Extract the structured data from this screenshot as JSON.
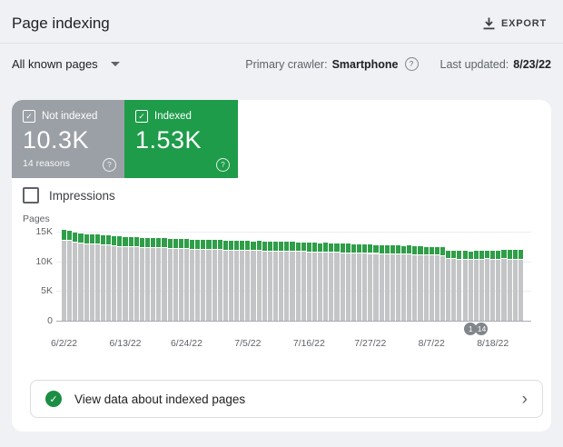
{
  "header": {
    "title": "Page indexing",
    "export_label": "EXPORT"
  },
  "filter_bar": {
    "scope_label": "All known pages",
    "primary_crawler_label": "Primary crawler:",
    "primary_crawler_value": "Smartphone",
    "last_updated_label": "Last updated:",
    "last_updated_value": "8/23/22"
  },
  "cards": {
    "not_indexed": {
      "label": "Not indexed",
      "value": "10.3K",
      "sub": "14 reasons",
      "color": "#9ba0a6"
    },
    "indexed": {
      "label": "Indexed",
      "value": "1.53K",
      "color": "#1e9c4a"
    }
  },
  "impressions": {
    "label": "Impressions",
    "checked": false
  },
  "chart_data": {
    "type": "bar",
    "stacked": true,
    "ylabel": "Pages",
    "ylim": [
      0,
      15000
    ],
    "grid": true,
    "y_ticks": [
      {
        "label": "0",
        "value": 0
      },
      {
        "label": "5K",
        "value": 5000
      },
      {
        "label": "10K",
        "value": 10000
      },
      {
        "label": "15K",
        "value": 15000
      }
    ],
    "x_tick_labels": [
      "6/2/22",
      "6/13/22",
      "6/24/22",
      "7/5/22",
      "7/16/22",
      "7/27/22",
      "8/7/22",
      "8/18/22"
    ],
    "x": [
      "6/2/22",
      "6/3/22",
      "6/4/22",
      "6/5/22",
      "6/6/22",
      "6/7/22",
      "6/8/22",
      "6/9/22",
      "6/10/22",
      "6/11/22",
      "6/12/22",
      "6/13/22",
      "6/14/22",
      "6/15/22",
      "6/16/22",
      "6/17/22",
      "6/18/22",
      "6/19/22",
      "6/20/22",
      "6/21/22",
      "6/22/22",
      "6/23/22",
      "6/24/22",
      "6/25/22",
      "6/26/22",
      "6/27/22",
      "6/28/22",
      "6/29/22",
      "6/30/22",
      "7/1/22",
      "7/2/22",
      "7/3/22",
      "7/4/22",
      "7/5/22",
      "7/6/22",
      "7/7/22",
      "7/8/22",
      "7/9/22",
      "7/10/22",
      "7/11/22",
      "7/12/22",
      "7/13/22",
      "7/14/22",
      "7/15/22",
      "7/16/22",
      "7/17/22",
      "7/18/22",
      "7/19/22",
      "7/20/22",
      "7/21/22",
      "7/22/22",
      "7/23/22",
      "7/24/22",
      "7/25/22",
      "7/26/22",
      "7/27/22",
      "7/28/22",
      "7/29/22",
      "7/30/22",
      "7/31/22",
      "8/1/22",
      "8/2/22",
      "8/3/22",
      "8/4/22",
      "8/5/22",
      "8/6/22",
      "8/7/22",
      "8/8/22",
      "8/9/22",
      "8/10/22",
      "8/11/22",
      "8/12/22",
      "8/13/22",
      "8/14/22",
      "8/15/22",
      "8/16/22",
      "8/17/22",
      "8/18/22",
      "8/19/22",
      "8/20/22",
      "8/21/22",
      "8/22/22",
      "8/23/22"
    ],
    "series": [
      {
        "name": "Not indexed",
        "color": "#c4c5c7",
        "values": [
          13500,
          13400,
          13100,
          13050,
          12850,
          12800,
          12800,
          12750,
          12700,
          12500,
          12450,
          12400,
          12400,
          12350,
          12300,
          12300,
          12250,
          12200,
          12200,
          12150,
          12100,
          12100,
          12050,
          12000,
          12000,
          11950,
          11950,
          11900,
          11900,
          11850,
          11850,
          11800,
          11800,
          11800,
          11750,
          11750,
          11700,
          11700,
          11700,
          11650,
          11650,
          11600,
          11600,
          11600,
          11550,
          11550,
          11500,
          11500,
          11450,
          11450,
          11400,
          11400,
          11350,
          11300,
          11300,
          11250,
          11250,
          11200,
          11200,
          11150,
          11150,
          11100,
          11100,
          11050,
          11000,
          11000,
          10950,
          10950,
          10900,
          10400,
          10350,
          10300,
          10300,
          10250,
          10300,
          10300,
          10350,
          10300,
          10300,
          10350,
          10300,
          10300,
          10300
        ]
      },
      {
        "name": "Indexed",
        "color": "#2f9e48",
        "values": [
          1600,
          1600,
          1550,
          1550,
          1600,
          1600,
          1600,
          1550,
          1550,
          1600,
          1600,
          1550,
          1550,
          1600,
          1550,
          1550,
          1600,
          1550,
          1550,
          1500,
          1550,
          1500,
          1550,
          1500,
          1500,
          1550,
          1500,
          1500,
          1550,
          1500,
          1500,
          1450,
          1500,
          1500,
          1450,
          1500,
          1450,
          1450,
          1500,
          1450,
          1450,
          1500,
          1450,
          1450,
          1400,
          1450,
          1400,
          1450,
          1400,
          1400,
          1450,
          1400,
          1400,
          1450,
          1400,
          1400,
          1350,
          1400,
          1350,
          1400,
          1350,
          1350,
          1400,
          1350,
          1350,
          1300,
          1350,
          1300,
          1350,
          1300,
          1300,
          1350,
          1300,
          1300,
          1350,
          1300,
          1350,
          1400,
          1400,
          1450,
          1500,
          1500,
          1530
        ]
      }
    ],
    "annotations": [
      {
        "label": "1",
        "date": "8/14/22"
      },
      {
        "label": "14",
        "date": "8/16/22"
      }
    ]
  },
  "footer": {
    "cta": "View data about indexed pages"
  }
}
